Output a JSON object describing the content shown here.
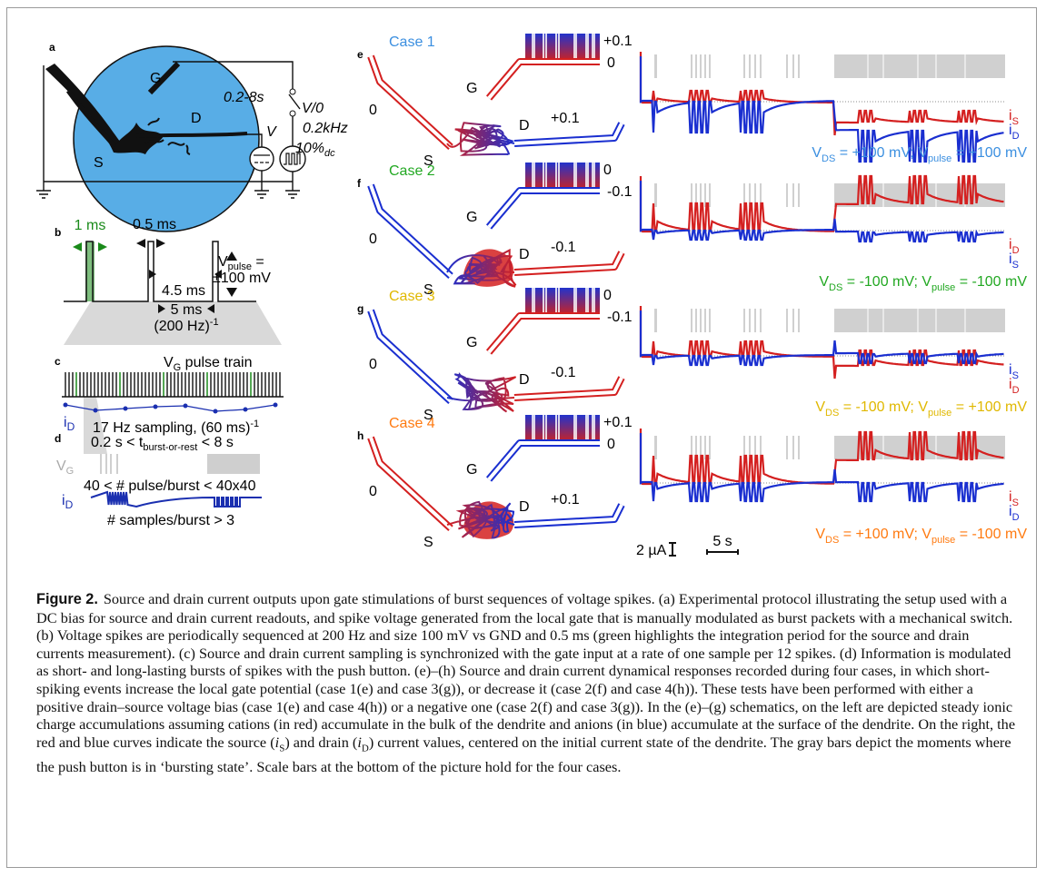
{
  "panel_a": {
    "letter": "a",
    "gate": "G",
    "timing": "0.2-8s",
    "drain": "D",
    "source": "S",
    "voltage": "V",
    "pulse_state": "V/0",
    "frequency": "0.2kHz",
    "duty": "10%",
    "duty_sub": "dc"
  },
  "panel_b": {
    "letter": "b",
    "integration": "1 ms",
    "pulse_width": "0.5 ms",
    "amplitude": "V",
    "amplitude_sub": "pulse",
    "amplitude_eq": " =",
    "amplitude_value": "±100 mV",
    "interval": "4.5 ms",
    "period": "5 ms",
    "frequency": "(200 Hz)",
    "frequency_sup": "-1"
  },
  "panel_c": {
    "letter": "c",
    "train": "V",
    "train_sub": "G",
    "train_text": " pulse train",
    "current": "i",
    "current_sub": "D",
    "sampling": "17 Hz sampling, (60 ms)",
    "sampling_sup": "-1"
  },
  "panel_d": {
    "letter": "d",
    "duration_1": "0.2 s < t",
    "duration_sub": "burst-or-rest",
    "duration_2": " < 8 s",
    "gate": "V",
    "gate_sub": "G",
    "pulses": "40 < # pulse/burst < 40x40",
    "current": "i",
    "current_sub": "D",
    "samples": "# samples/burst > 3"
  },
  "cases": [
    {
      "letter": "e",
      "name": "Case 1",
      "gate": "G",
      "gate_high": "+0.1",
      "gate_low": "0",
      "source_potential": "0",
      "source": "S",
      "drain": "D",
      "drain_potential": "+0.1",
      "currents": [
        {
          "symbol": "i",
          "sub": "S"
        },
        {
          "symbol": "i",
          "sub": "D"
        }
      ],
      "equation": [
        {
          "text": "V"
        },
        {
          "sub": "DS"
        },
        {
          "text": " = +100 mV; V"
        },
        {
          "sub": "pulse"
        },
        {
          "text": " = +100 mV"
        }
      ]
    },
    {
      "letter": "f",
      "name": "Case 2",
      "gate": "G",
      "gate_high": "0",
      "gate_low": "-0.1",
      "source_potential": "0",
      "source": "S",
      "drain": "D",
      "drain_potential": "-0.1",
      "currents": [
        {
          "symbol": "i",
          "sub": "D"
        },
        {
          "symbol": "i",
          "sub": "S"
        }
      ],
      "equation": [
        {
          "text": "V"
        },
        {
          "sub": "DS"
        },
        {
          "text": " = -100 mV; V"
        },
        {
          "sub": "pulse"
        },
        {
          "text": " = -100 mV"
        }
      ]
    },
    {
      "letter": "g",
      "name": "Case 3",
      "gate": "G",
      "gate_high": "0",
      "gate_low": "-0.1",
      "source_potential": "0",
      "source": "S",
      "drain": "D",
      "drain_potential": "-0.1",
      "currents": [
        {
          "symbol": "i",
          "sub": "S"
        },
        {
          "symbol": "i",
          "sub": "D"
        }
      ],
      "equation": [
        {
          "text": "V"
        },
        {
          "sub": "DS"
        },
        {
          "text": " = -100 mV; V"
        },
        {
          "sub": "pulse"
        },
        {
          "text": " = +100 mV"
        }
      ]
    },
    {
      "letter": "h",
      "name": "Case 4",
      "gate": "G",
      "gate_high": "+0.1",
      "gate_low": "0",
      "source_potential": "0",
      "source": "S",
      "drain": "D",
      "drain_potential": "+0.1",
      "currents": [
        {
          "symbol": "i",
          "sub": "S"
        },
        {
          "symbol": "i",
          "sub": "D"
        }
      ],
      "equation": [
        {
          "text": "V"
        },
        {
          "sub": "DS"
        },
        {
          "text": " = +100 mV; V"
        },
        {
          "sub": "pulse"
        },
        {
          "text": " = -100 mV"
        }
      ]
    }
  ],
  "scale_bars": {
    "current": "2 µA",
    "time": "5 s"
  },
  "caption": {
    "label": "Figure 2.",
    "text_1": "Source and drain current outputs upon gate stimulations of burst sequences of voltage spikes. (a) Experimental protocol illustrating the setup used with a DC bias for source and drain current readouts, and spike voltage generated from the local gate that is manually modulated as burst packets with a mechanical switch. (b) Voltage spikes are periodically sequenced at 200 Hz and size 100 mV vs GND and 0.5 ms (green highlights the integration period for the source and drain currents measurement). (c) Source and drain current sampling is synchronized with the gate input at a rate of one sample per 12 spikes. (d) Information is modulated as short- and long-lasting bursts of spikes with the push button. (e)–(h) Source and drain current dynamical responses recorded during four cases, in which short-spiking events increase the local gate potential (case 1(e) and case 3(g)), or decrease it (case 2(f) and case 4(h)). These tests have been performed with either a positive drain–source voltage bias (case 1(e) and case 4(h)) or a negative one (case 2(f) and case 3(g)). In the (e)–(g) schematics, on the left are depicted steady ionic charge accumulations assuming cations (in red) accumulate in the bulk of the dendrite and anions (in blue) accumulate at the surface of the dendrite. On the right, the red and blue curves indicate the source (",
    "source_symbol": "i",
    "source_sub": "S",
    "text_2": ") and drain (",
    "drain_symbol": "i",
    "drain_sub": "D",
    "text_3": ") current values, centered on the initial current state of the dendrite. The gray bars depict the moments where the push button is in ‘bursting state’. Scale bars at the bottom of the picture hold for the four cases."
  }
}
